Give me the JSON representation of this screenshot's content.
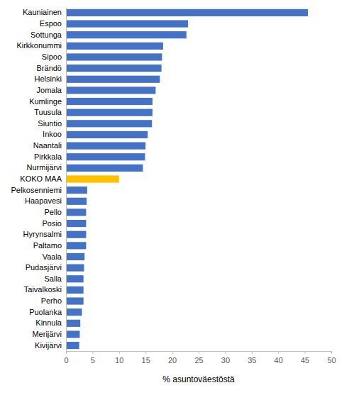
{
  "chart_data": {
    "type": "bar",
    "orientation": "horizontal",
    "categories": [
      "Kauniainen",
      "Espoo",
      "Sottunga",
      "Kirkkonummi",
      "Sipoo",
      "Brändö",
      "Helsinki",
      "Jomala",
      "Kumlinge",
      "Tuusula",
      "Siuntio",
      "Inkoo",
      "Naantali",
      "Pirkkala",
      "Nurmijärvi",
      "KOKO MAA",
      "Pelkosenniemi",
      "Haapavesi",
      "Pello",
      "Posio",
      "Hyrynsalmi",
      "Paltamo",
      "Vaala",
      "Pudasjärvi",
      "Salla",
      "Taivalkoski",
      "Perho",
      "Puolanka",
      "Kinnula",
      "Merijärvi",
      "Kivijärvi"
    ],
    "values": [
      45.6,
      23.0,
      22.7,
      18.3,
      18.1,
      18.0,
      17.7,
      16.9,
      16.3,
      16.3,
      16.2,
      15.4,
      15.0,
      14.9,
      14.5,
      10.0,
      4.0,
      3.9,
      3.8,
      3.8,
      3.8,
      3.8,
      3.5,
      3.4,
      3.3,
      3.3,
      3.3,
      3.0,
      2.7,
      2.6,
      2.5
    ],
    "colors": [
      "#4472c4",
      "#4472c4",
      "#4472c4",
      "#4472c4",
      "#4472c4",
      "#4472c4",
      "#4472c4",
      "#4472c4",
      "#4472c4",
      "#4472c4",
      "#4472c4",
      "#4472c4",
      "#4472c4",
      "#4472c4",
      "#4472c4",
      "#ffc000",
      "#4472c4",
      "#4472c4",
      "#4472c4",
      "#4472c4",
      "#4472c4",
      "#4472c4",
      "#4472c4",
      "#4472c4",
      "#4472c4",
      "#4472c4",
      "#4472c4",
      "#4472c4",
      "#4472c4",
      "#4472c4",
      "#4472c4"
    ],
    "x_label": "% asuntoväestöstä",
    "xlim": [
      0,
      50
    ],
    "xticks": [
      0,
      5,
      10,
      15,
      20,
      25,
      30,
      35,
      40,
      45,
      50
    ],
    "grid": false
  }
}
